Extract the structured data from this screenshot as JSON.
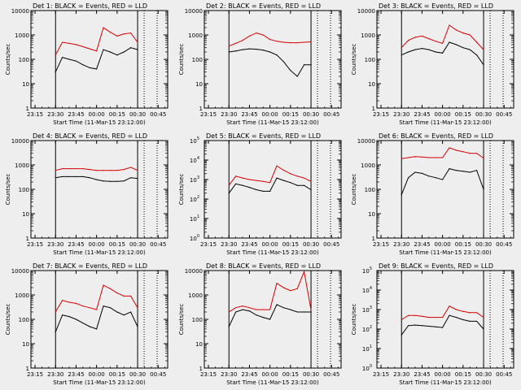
{
  "figure": {
    "time_ticks": [
      "23:15",
      "23:30",
      "23:45",
      "00:00",
      "00:15",
      "00:30",
      "00:45"
    ],
    "xlabel": "Start Time (11-Mar-15 23:12:00)",
    "ylabel": "Counts/sec",
    "colors": {
      "events": "#000000",
      "lld": "#d40000",
      "background": "#eeeeee"
    }
  },
  "chart_data": [
    {
      "type": "line",
      "title": "Det 1: BLACK = Events, RED = LLD",
      "ylabel": "Counts/sec",
      "xlabel": "Start Time (11-Mar-15 23:12:00)",
      "x": [
        "23:30",
        "23:35",
        "23:40",
        "23:45",
        "23:50",
        "23:55",
        "00:00",
        "00:05",
        "00:10",
        "00:15",
        "00:20",
        "00:25",
        "00:30"
      ],
      "yscale": "log",
      "ylim": [
        1,
        10000
      ],
      "ytick_style": "plain",
      "series": [
        {
          "name": "BLACK = Events",
          "values": [
            30,
            120,
            100,
            85,
            60,
            45,
            40,
            250,
            200,
            150,
            200,
            300,
            250
          ]
        },
        {
          "name": "RED = LLD",
          "values": [
            150,
            500,
            450,
            400,
            330,
            270,
            220,
            2000,
            1300,
            900,
            1100,
            1200,
            500
          ]
        }
      ]
    },
    {
      "type": "line",
      "title": "Det 2: BLACK = Events, RED = LLD",
      "ylabel": "Counts/sec",
      "xlabel": "Start Time (11-Mar-15 23:12:00)",
      "x": [
        "23:30",
        "23:35",
        "23:40",
        "23:45",
        "23:50",
        "23:55",
        "00:00",
        "00:05",
        "00:10",
        "00:15",
        "00:20",
        "00:25",
        "00:30"
      ],
      "yscale": "log",
      "ylim": [
        1,
        10000
      ],
      "ytick_style": "plain",
      "series": [
        {
          "name": "BLACK = Events",
          "values": [
            200,
            220,
            250,
            270,
            260,
            240,
            200,
            150,
            80,
            35,
            20,
            60,
            60
          ]
        },
        {
          "name": "RED = LLD",
          "values": [
            350,
            450,
            600,
            900,
            1200,
            1000,
            650,
            550,
            500,
            480,
            480,
            500,
            520
          ]
        }
      ]
    },
    {
      "type": "line",
      "title": "Det 3: BLACK = Events, RED = LLD",
      "ylabel": "Counts/sec",
      "xlabel": "Start Time (11-Mar-15 23:12:00)",
      "x": [
        "23:30",
        "23:35",
        "23:40",
        "23:45",
        "23:50",
        "23:55",
        "00:00",
        "00:05",
        "00:10",
        "00:15",
        "00:20",
        "00:25",
        "00:30"
      ],
      "yscale": "log",
      "ylim": [
        1,
        10000
      ],
      "ytick_style": "plain",
      "series": [
        {
          "name": "BLACK = Events",
          "values": [
            150,
            200,
            250,
            280,
            250,
            200,
            180,
            500,
            400,
            300,
            250,
            150,
            60
          ]
        },
        {
          "name": "RED = LLD",
          "values": [
            300,
            600,
            800,
            900,
            700,
            550,
            450,
            2500,
            1600,
            1200,
            1000,
            500,
            250
          ]
        }
      ]
    },
    {
      "type": "line",
      "title": "Det 4: BLACK = Events, RED = LLD",
      "ylabel": "Counts/sec",
      "xlabel": "Start Time (11-Mar-15 23:12:00)",
      "x": [
        "23:30",
        "23:35",
        "23:40",
        "23:45",
        "23:50",
        "23:55",
        "00:00",
        "00:05",
        "00:10",
        "00:15",
        "00:20",
        "00:25",
        "00:30"
      ],
      "yscale": "log",
      "ylim": [
        1,
        10000
      ],
      "ytick_style": "plain",
      "series": [
        {
          "name": "BLACK = Events",
          "values": [
            300,
            330,
            330,
            330,
            330,
            300,
            250,
            220,
            210,
            210,
            220,
            300,
            280
          ]
        },
        {
          "name": "RED = LLD",
          "values": [
            600,
            700,
            700,
            700,
            700,
            650,
            600,
            600,
            600,
            600,
            650,
            800,
            600
          ]
        }
      ]
    },
    {
      "type": "line",
      "title": "Det 5: BLACK = Events, RED = LLD",
      "ylabel": "Counts/sec",
      "xlabel": "Start Time (11-Mar-15 23:12:00)",
      "x": [
        "23:30",
        "23:35",
        "23:40",
        "23:45",
        "23:50",
        "23:55",
        "00:00",
        "00:05",
        "00:10",
        "00:15",
        "00:20",
        "00:25",
        "00:30"
      ],
      "yscale": "log",
      "ylim": [
        1,
        100000
      ],
      "ytick_style": "power",
      "series": [
        {
          "name": "BLACK = Events",
          "values": [
            200,
            600,
            500,
            400,
            300,
            250,
            250,
            1200,
            900,
            700,
            500,
            500,
            300
          ]
        },
        {
          "name": "RED = LLD",
          "values": [
            500,
            1500,
            1200,
            1000,
            900,
            800,
            700,
            5000,
            3000,
            2000,
            1500,
            1200,
            800
          ]
        }
      ]
    },
    {
      "type": "line",
      "title": "Det 6: BLACK = Events, RED = LLD",
      "ylabel": "Counts/sec",
      "xlabel": "Start Time (11-Mar-15 23:12:00)",
      "x": [
        "23:30",
        "23:35",
        "23:40",
        "23:45",
        "23:50",
        "23:55",
        "00:00",
        "00:05",
        "00:10",
        "00:15",
        "00:20",
        "00:25",
        "00:30"
      ],
      "yscale": "log",
      "ylim": [
        1,
        10000
      ],
      "ytick_style": "plain",
      "series": [
        {
          "name": "BLACK = Events",
          "values": [
            60,
            300,
            500,
            450,
            350,
            300,
            250,
            700,
            600,
            550,
            500,
            600,
            100
          ]
        },
        {
          "name": "RED = LLD",
          "values": [
            1800,
            2000,
            2200,
            2100,
            2000,
            2000,
            2000,
            5000,
            4000,
            3500,
            3000,
            3000,
            1900
          ]
        }
      ]
    },
    {
      "type": "line",
      "title": "Det 7: BLACK = Events, RED = LLD",
      "ylabel": "Counts/sec",
      "xlabel": "Start Time (11-Mar-15 23:12:00)",
      "x": [
        "23:30",
        "23:35",
        "23:40",
        "23:45",
        "23:50",
        "23:55",
        "00:00",
        "00:05",
        "00:10",
        "00:15",
        "00:20",
        "00:25",
        "00:30"
      ],
      "yscale": "log",
      "ylim": [
        1,
        10000
      ],
      "ytick_style": "plain",
      "series": [
        {
          "name": "BLACK = Events",
          "values": [
            30,
            150,
            130,
            100,
            70,
            50,
            40,
            350,
            300,
            200,
            150,
            200,
            50
          ]
        },
        {
          "name": "RED = LLD",
          "values": [
            200,
            600,
            500,
            450,
            350,
            300,
            250,
            2500,
            1800,
            1200,
            900,
            900,
            300
          ]
        }
      ]
    },
    {
      "type": "line",
      "title": "Det 8: BLACK = Events, RED = LLD",
      "ylabel": "Counts/sec",
      "xlabel": "Start Time (11-Mar-15 23:12:00)",
      "x": [
        "23:30",
        "23:35",
        "23:40",
        "23:45",
        "23:50",
        "23:55",
        "00:00",
        "00:05",
        "00:10",
        "00:15",
        "00:20",
        "00:25",
        "00:30"
      ],
      "yscale": "log",
      "ylim": [
        1,
        10000
      ],
      "ytick_style": "plain",
      "series": [
        {
          "name": "BLACK = Events",
          "values": [
            50,
            200,
            250,
            220,
            150,
            120,
            100,
            400,
            300,
            250,
            200,
            200,
            200
          ]
        },
        {
          "name": "RED = LLD",
          "values": [
            200,
            300,
            350,
            300,
            250,
            250,
            250,
            3000,
            2000,
            1500,
            1800,
            9000,
            250
          ]
        }
      ]
    },
    {
      "type": "line",
      "title": "Det 9: BLACK = Events, RED = LLD",
      "ylabel": "Counts/sec",
      "xlabel": "Start Time (11-Mar-15 23:12:00)",
      "x": [
        "23:30",
        "23:35",
        "23:40",
        "23:45",
        "23:50",
        "23:55",
        "00:00",
        "00:05",
        "00:10",
        "00:15",
        "00:20",
        "00:25",
        "00:30"
      ],
      "yscale": "log",
      "ylim": [
        1,
        100000
      ],
      "ytick_style": "power",
      "series": [
        {
          "name": "BLACK = Events",
          "values": [
            50,
            150,
            160,
            150,
            140,
            130,
            120,
            500,
            400,
            300,
            250,
            250,
            100
          ]
        },
        {
          "name": "RED = LLD",
          "values": [
            300,
            500,
            500,
            450,
            400,
            400,
            400,
            1500,
            1000,
            800,
            700,
            700,
            400
          ]
        }
      ]
    }
  ]
}
